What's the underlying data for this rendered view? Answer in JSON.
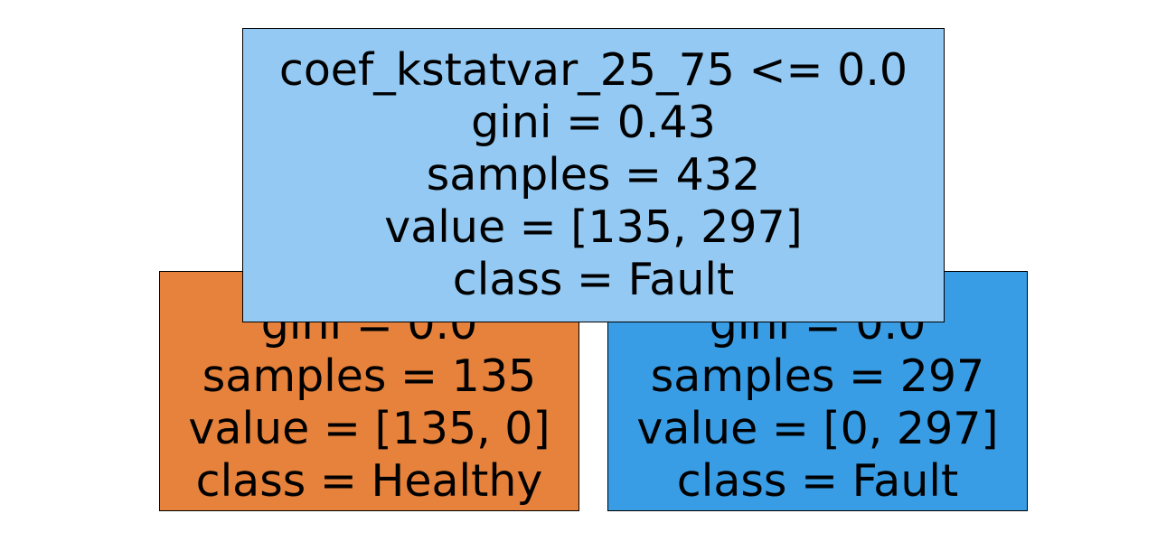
{
  "colors": {
    "root_fill": "#93c9f2",
    "left_fill": "#e6823b",
    "right_fill": "#399de5",
    "border": "#000000",
    "text": "#000000"
  },
  "tree": {
    "root": {
      "split": "coef_kstatvar_25_75 <= 0.0",
      "gini": "gini = 0.43",
      "samples": "samples = 432",
      "value": "value = [135, 297]",
      "class": "class = Fault"
    },
    "left": {
      "gini": "gini = 0.0",
      "samples": "samples = 135",
      "value": "value = [135, 0]",
      "class": "class = Healthy"
    },
    "right": {
      "gini": "gini = 0.0",
      "samples": "samples = 297",
      "value": "value = [0, 297]",
      "class": "class = Fault"
    }
  }
}
